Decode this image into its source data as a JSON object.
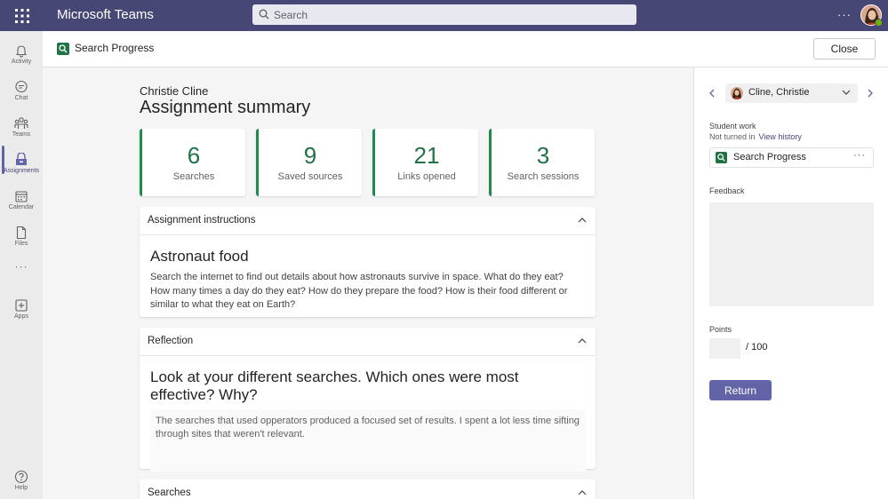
{
  "app": {
    "title": "Microsoft Teams"
  },
  "search": {
    "placeholder": "Search"
  },
  "rail": {
    "items": [
      {
        "label": "Activity",
        "icon": "bell-icon"
      },
      {
        "label": "Chat",
        "icon": "chat-icon"
      },
      {
        "label": "Teams",
        "icon": "teams-icon"
      },
      {
        "label": "Assignments",
        "icon": "assignments-icon",
        "active": true
      },
      {
        "label": "Calendar",
        "icon": "calendar-icon"
      },
      {
        "label": "Files",
        "icon": "files-icon"
      },
      {
        "label": "Apps",
        "icon": "apps-icon"
      },
      {
        "label": "Help",
        "icon": "help-icon"
      }
    ]
  },
  "header": {
    "title": "Search Progress",
    "close_label": "Close"
  },
  "summary": {
    "student_name": "Christie Cline",
    "title": "Assignment summary",
    "stats": [
      {
        "value": "6",
        "label": "Searches"
      },
      {
        "value": "9",
        "label": "Saved sources"
      },
      {
        "value": "21",
        "label": "Links opened"
      },
      {
        "value": "3",
        "label": "Search sessions"
      }
    ]
  },
  "instructions": {
    "section_label": "Assignment instructions",
    "heading": "Astronaut food",
    "body": "Search the internet to find out details about how astronauts survive in space. What do they eat? How many times a day do they eat? How do they prepare the food? How is their food different or similar to what they eat on Earth?"
  },
  "reflection": {
    "section_label": "Reflection",
    "question": "Look at your different searches. Which ones were most effective? Why?",
    "answer": "The searches that used opperators produced a focused set of results. I spent a lot less time sifting through sites that weren't relevant."
  },
  "searches": {
    "section_label": "Searches"
  },
  "panel": {
    "student_select": "Cline, Christie",
    "student_work_label": "Student work",
    "status": "Not turned in",
    "view_history": "View history",
    "work_item": "Search Progress",
    "feedback_label": "Feedback",
    "points_label": "Points",
    "points_max": "/ 100",
    "return_label": "Return"
  },
  "colors": {
    "topbar": "#464775",
    "accent": "#6264a7",
    "stat_green": "#217346"
  }
}
